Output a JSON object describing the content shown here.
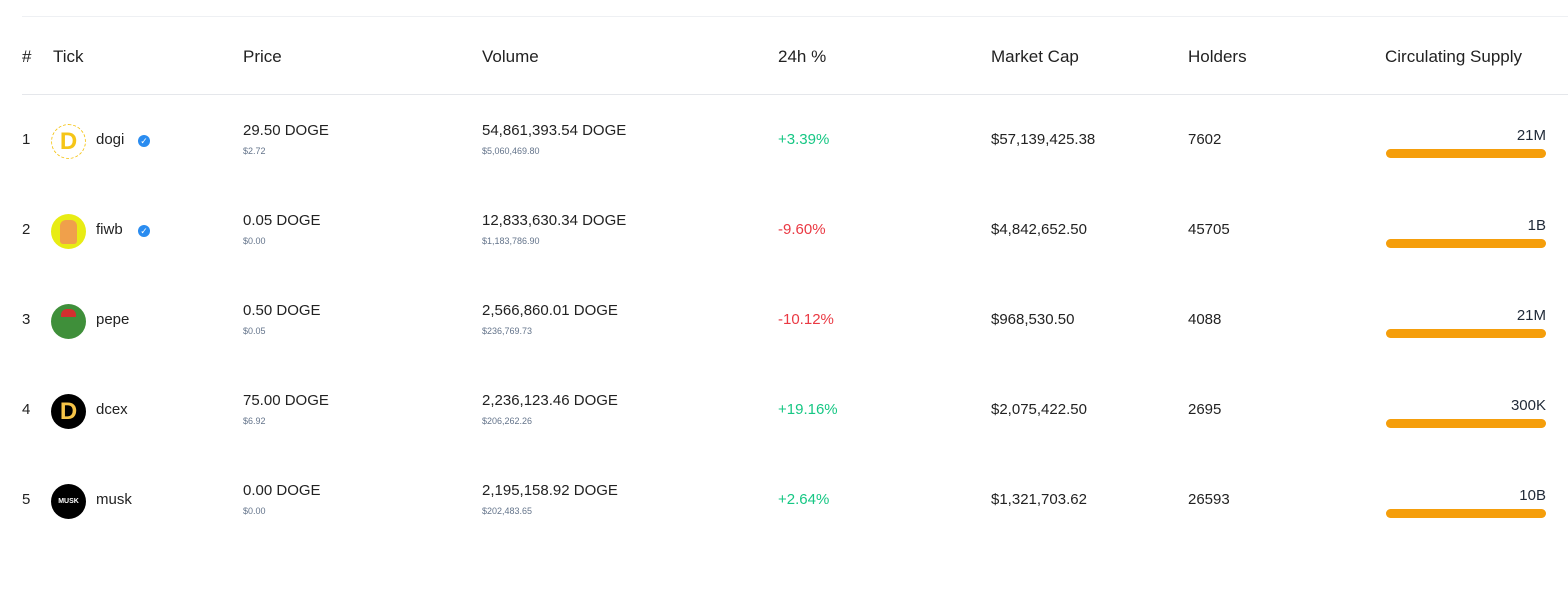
{
  "headers": {
    "rank": "#",
    "tick": "Tick",
    "price": "Price",
    "volume": "Volume",
    "change": "24h %",
    "market_cap": "Market Cap",
    "holders": "Holders",
    "supply": "Circulating Supply"
  },
  "colors": {
    "positive": "#16c784",
    "negative": "#ea3943",
    "supply_bar": "#f59e0b",
    "verified": "#2a8cf0"
  },
  "rows": [
    {
      "rank": "1",
      "tick": "dogi",
      "verified": true,
      "icon": "dogi-logo-icon",
      "price": "29.50 DOGE",
      "price_usd": "$2.72",
      "volume": "54,861,393.54 DOGE",
      "volume_usd": "$5,060,469.80",
      "change": "+3.39%",
      "market_cap": "$57,139,425.38",
      "holders": "7602",
      "supply": "21M",
      "supply_progress": 1.0
    },
    {
      "rank": "2",
      "tick": "fiwb",
      "verified": true,
      "icon": "fiwb-dog-icon",
      "price": "0.05 DOGE",
      "price_usd": "$0.00",
      "volume": "12,833,630.34 DOGE",
      "volume_usd": "$1,183,786.90",
      "change": "-9.60%",
      "market_cap": "$4,842,652.50",
      "holders": "45705",
      "supply": "1B",
      "supply_progress": 1.0
    },
    {
      "rank": "3",
      "tick": "pepe",
      "verified": false,
      "icon": "pepe-frog-icon",
      "price": "0.50 DOGE",
      "price_usd": "$0.05",
      "volume": "2,566,860.01 DOGE",
      "volume_usd": "$236,769.73",
      "change": "-10.12%",
      "market_cap": "$968,530.50",
      "holders": "4088",
      "supply": "21M",
      "supply_progress": 1.0
    },
    {
      "rank": "4",
      "tick": "dcex",
      "verified": false,
      "icon": "dcex-logo-icon",
      "price": "75.00 DOGE",
      "price_usd": "$6.92",
      "volume": "2,236,123.46 DOGE",
      "volume_usd": "$206,262.26",
      "change": "+19.16%",
      "market_cap": "$2,075,422.50",
      "holders": "2695",
      "supply": "300K",
      "supply_progress": 1.0
    },
    {
      "rank": "5",
      "tick": "musk",
      "verified": false,
      "icon": "musk-logo-icon",
      "price": "0.00 DOGE",
      "price_usd": "$0.00",
      "volume": "2,195,158.92 DOGE",
      "volume_usd": "$202,483.65",
      "change": "+2.64%",
      "market_cap": "$1,321,703.62",
      "holders": "26593",
      "supply": "10B",
      "supply_progress": 1.0
    }
  ]
}
